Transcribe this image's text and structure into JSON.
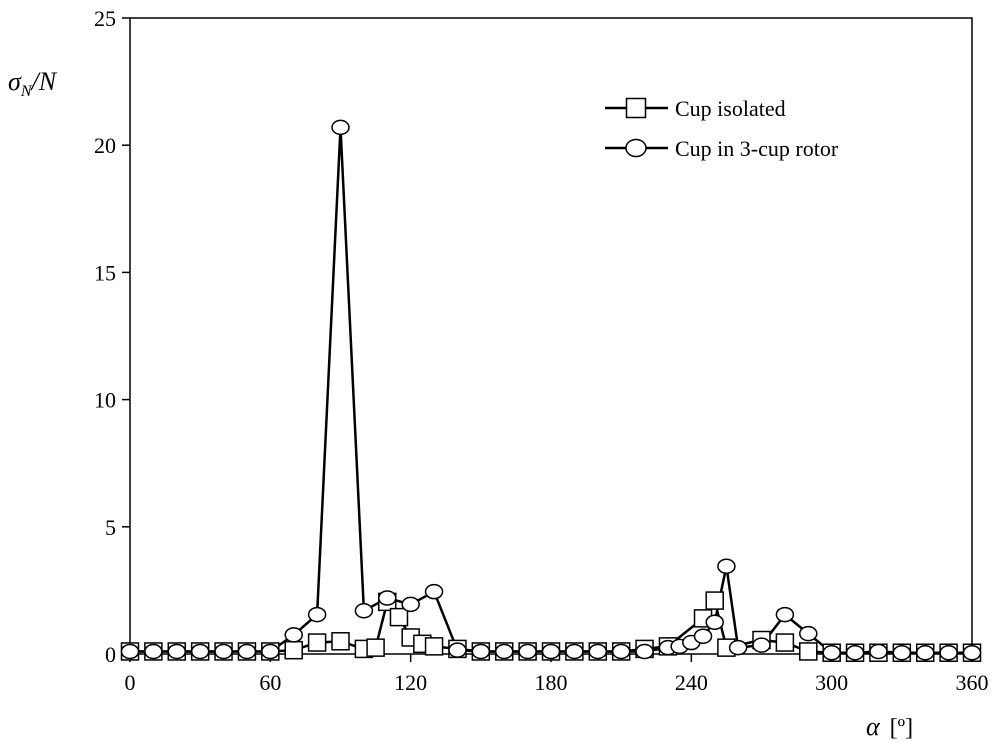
{
  "chart_data": {
    "type": "line",
    "title": "",
    "xlabel": "α [º]",
    "ylabel": "σ_N/N",
    "xlim": [
      0,
      360
    ],
    "ylim": [
      0,
      25
    ],
    "xticks": [
      0,
      60,
      120,
      180,
      240,
      300,
      360
    ],
    "yticks": [
      0,
      5,
      10,
      15,
      20,
      25
    ],
    "grid": false,
    "legend_position": "top-right",
    "series": [
      {
        "name": "Cup isolated",
        "marker": "square",
        "x": [
          0,
          10,
          20,
          30,
          40,
          50,
          60,
          70,
          80,
          90,
          100,
          105,
          110,
          115,
          120,
          125,
          130,
          140,
          150,
          160,
          170,
          180,
          190,
          200,
          210,
          220,
          230,
          245,
          250,
          255,
          270,
          280,
          290,
          300,
          310,
          320,
          330,
          340,
          350,
          360
        ],
        "y": [
          0.1,
          0.1,
          0.1,
          0.1,
          0.1,
          0.1,
          0.1,
          0.15,
          0.45,
          0.5,
          0.2,
          0.25,
          2.05,
          1.45,
          0.65,
          0.4,
          0.3,
          0.2,
          0.1,
          0.1,
          0.1,
          0.1,
          0.1,
          0.1,
          0.1,
          0.2,
          0.3,
          1.4,
          2.1,
          0.25,
          0.55,
          0.45,
          0.1,
          0.05,
          0.05,
          0.05,
          0.05,
          0.05,
          0.05,
          0.05
        ]
      },
      {
        "name": "Cup in 3-cup rotor",
        "marker": "circle",
        "x": [
          0,
          10,
          20,
          30,
          40,
          50,
          60,
          70,
          80,
          90,
          100,
          110,
          120,
          130,
          140,
          150,
          160,
          170,
          180,
          190,
          200,
          210,
          220,
          230,
          235,
          240,
          245,
          250,
          255,
          260,
          270,
          280,
          290,
          300,
          310,
          320,
          330,
          340,
          350,
          360
        ],
        "y": [
          0.1,
          0.1,
          0.1,
          0.1,
          0.1,
          0.1,
          0.1,
          0.75,
          1.55,
          20.7,
          1.7,
          2.2,
          1.95,
          2.45,
          0.15,
          0.1,
          0.1,
          0.1,
          0.1,
          0.1,
          0.1,
          0.1,
          0.1,
          0.25,
          0.3,
          0.45,
          0.7,
          1.25,
          3.45,
          0.25,
          0.35,
          1.55,
          0.8,
          0.05,
          0.05,
          0.1,
          0.05,
          0.05,
          0.05,
          0.05
        ]
      }
    ]
  },
  "axes": {
    "y_title_main": "σ",
    "y_title_sub": "N",
    "y_title_rest": "/N",
    "x_title_symbol": "α",
    "x_title_unit": "[º]"
  }
}
